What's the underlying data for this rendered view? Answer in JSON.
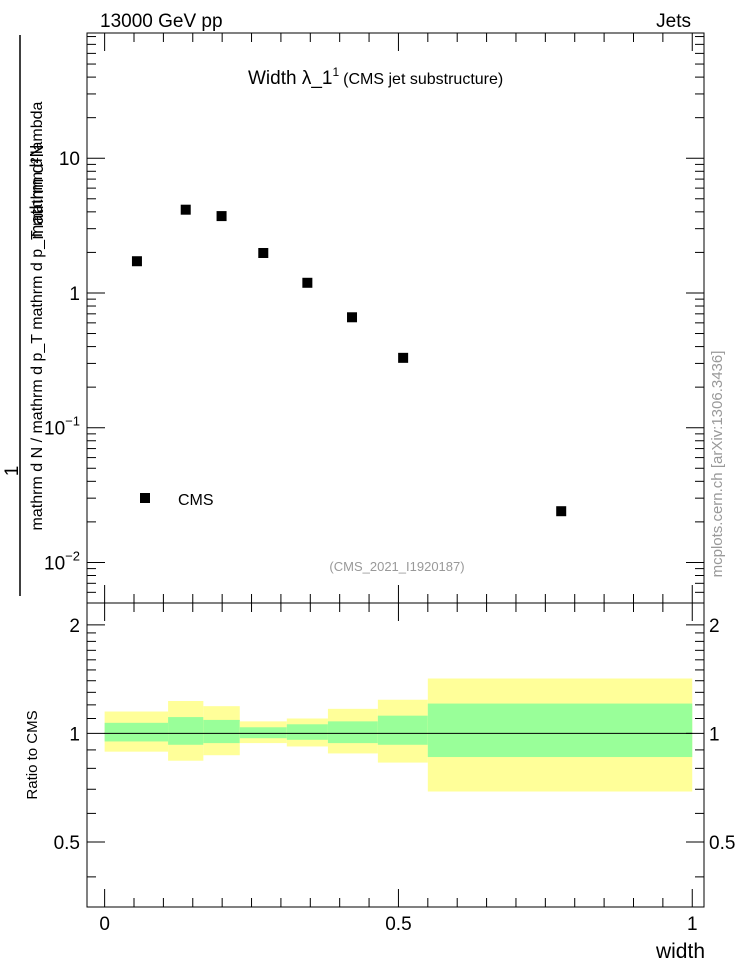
{
  "header": {
    "left": "13000 GeV pp",
    "right": "Jets"
  },
  "side_label": "mcplots.cern.ch [arXiv:1306.3436]",
  "colors": {
    "band_outer": "#ffff99",
    "band_inner": "#99ff99",
    "marker": "#000000",
    "ref_label": "#999999"
  },
  "chart_data": [
    {
      "type": "scatter",
      "title_main": "Width λ_1",
      "title_sup": "1",
      "title_sub": "(CMS jet substructure)",
      "ylabel_numerator": "1",
      "ylabel_fraction_num": "mathrm d²N",
      "ylabel_fraction_den": "mathrm d N / mathrm d p_T mathrm d p_T mathrm d lambda",
      "yscale": "log",
      "xlim": [
        -0.03,
        1.02
      ],
      "ylim": [
        0.005,
        85
      ],
      "y_ticks": [
        {
          "value": 0.01,
          "base": "10",
          "exp": "−2"
        },
        {
          "value": 0.1,
          "base": "10",
          "exp": "−1"
        },
        {
          "value": 1,
          "label": "1"
        },
        {
          "value": 10,
          "label": "10"
        }
      ],
      "series": [
        {
          "name": "CMS",
          "points": [
            {
              "x": 0.055,
              "y": 1.72
            },
            {
              "x": 0.138,
              "y": 4.15
            },
            {
              "x": 0.199,
              "y": 3.72
            },
            {
              "x": 0.27,
              "y": 1.98
            },
            {
              "x": 0.345,
              "y": 1.19
            },
            {
              "x": 0.421,
              "y": 0.66
            },
            {
              "x": 0.508,
              "y": 0.33
            },
            {
              "x": 0.777,
              "y": 0.024
            }
          ]
        }
      ],
      "legend_position": "lower-left",
      "reference_label": "(CMS_2021_I1920187)"
    },
    {
      "type": "area",
      "ylabel": "Ratio to CMS",
      "xlabel": "width",
      "xlim": [
        -0.03,
        1.02
      ],
      "ylim": [
        0.33,
        2.3
      ],
      "y_ticks": [
        "0.5",
        "1",
        "2"
      ],
      "y_tick_values": [
        0.5,
        1,
        2
      ],
      "x_ticks": [
        "0",
        "0.5",
        "1"
      ],
      "x_tick_values": [
        0,
        0.5,
        1
      ],
      "reference_line": 1,
      "bins": [
        {
          "x0": 0.0,
          "x1": 0.108,
          "inner": [
            0.95,
            1.07
          ],
          "outer": [
            0.89,
            1.15
          ]
        },
        {
          "x0": 0.108,
          "x1": 0.168,
          "inner": [
            0.93,
            1.11
          ],
          "outer": [
            0.84,
            1.23
          ]
        },
        {
          "x0": 0.168,
          "x1": 0.23,
          "inner": [
            0.94,
            1.09
          ],
          "outer": [
            0.87,
            1.19
          ]
        },
        {
          "x0": 0.23,
          "x1": 0.31,
          "inner": [
            0.97,
            1.04
          ],
          "outer": [
            0.94,
            1.08
          ]
        },
        {
          "x0": 0.31,
          "x1": 0.38,
          "inner": [
            0.96,
            1.06
          ],
          "outer": [
            0.92,
            1.1
          ]
        },
        {
          "x0": 0.38,
          "x1": 0.465,
          "inner": [
            0.94,
            1.08
          ],
          "outer": [
            0.88,
            1.17
          ]
        },
        {
          "x0": 0.465,
          "x1": 0.55,
          "inner": [
            0.93,
            1.12
          ],
          "outer": [
            0.83,
            1.24
          ]
        },
        {
          "x0": 0.55,
          "x1": 1.0,
          "inner": [
            0.86,
            1.21
          ],
          "outer": [
            0.69,
            1.42
          ]
        }
      ]
    }
  ]
}
